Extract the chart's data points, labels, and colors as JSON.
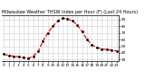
{
  "title": "Milwaukee Weather THSW Index per Hour (F) (Last 24 Hours)",
  "hours": [
    0,
    1,
    2,
    3,
    4,
    5,
    6,
    7,
    8,
    9,
    10,
    11,
    12,
    13,
    14,
    15,
    16,
    17,
    18,
    19,
    20,
    21,
    22,
    23
  ],
  "values": [
    38,
    36,
    35,
    34,
    33,
    32,
    35,
    42,
    58,
    70,
    80,
    88,
    92,
    91,
    88,
    82,
    72,
    60,
    52,
    48,
    46,
    45,
    44,
    43
  ],
  "line_color": "#ff0000",
  "marker_color": "#000000",
  "bg_color": "#ffffff",
  "grid_color": "#888888",
  "ylim": [
    28,
    96
  ],
  "yticks": [
    30,
    40,
    50,
    60,
    70,
    80,
    90
  ],
  "ytick_labels": [
    "30",
    "40",
    "50",
    "60",
    "70",
    "80",
    "90"
  ],
  "xtick_labels": [
    "0",
    "1",
    "2",
    "3",
    "4",
    "5",
    "6",
    "7",
    "8",
    "9",
    "10",
    "11",
    "12",
    "13",
    "14",
    "15",
    "16",
    "17",
    "18",
    "19",
    "20",
    "21",
    "22",
    "23"
  ],
  "title_fontsize": 3.5,
  "tick_fontsize": 3.0,
  "linewidth": 0.9,
  "markersize": 2.0
}
